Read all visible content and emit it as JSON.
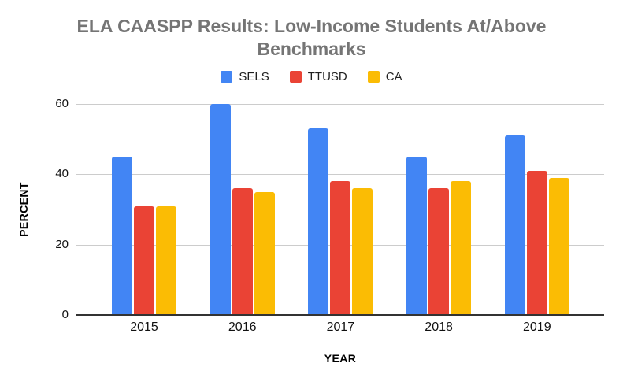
{
  "title": "ELA CAASPP Results: Low-Income Students At/Above Benchmarks",
  "colors": {
    "sels": "#4285F4",
    "ttusd": "#EA4335",
    "ca": "#FBBC04",
    "gridline": "#cccccc",
    "axis_line": "#333333",
    "title_text": "#757575"
  },
  "chart_data": {
    "type": "bar",
    "title": "ELA CAASPP Results: Low-Income Students At/Above Benchmarks",
    "xlabel": "YEAR",
    "ylabel": "PERCENT",
    "categories": [
      "2015",
      "2016",
      "2017",
      "2018",
      "2019"
    ],
    "series": [
      {
        "name": "SELS",
        "color": "#4285F4",
        "values": [
          45,
          60,
          53,
          45,
          51
        ]
      },
      {
        "name": "TTUSD",
        "color": "#EA4335",
        "values": [
          31,
          36,
          38,
          36,
          41
        ]
      },
      {
        "name": "CA",
        "color": "#FBBC04",
        "values": [
          31,
          35,
          36,
          38,
          39
        ]
      }
    ],
    "ylim": [
      0,
      60
    ],
    "yticks": [
      0,
      20,
      40,
      60
    ],
    "grid": true,
    "legend_position": "top"
  }
}
